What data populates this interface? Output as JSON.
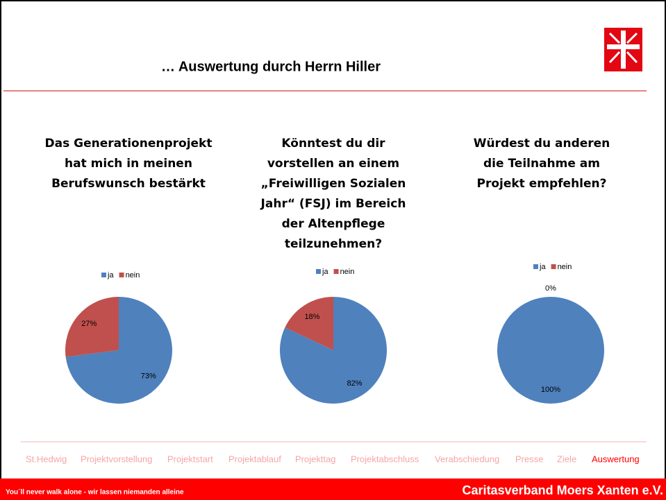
{
  "header": {
    "title": "… Auswertung durch Herrn Hiller"
  },
  "chart_data": [
    {
      "type": "pie",
      "title": [
        "Das Generationenprojekt",
        "hat mich in meinen",
        "Berufswunsch bestärkt"
      ],
      "categories": [
        "ja",
        "nein"
      ],
      "values": [
        73,
        27
      ],
      "value_labels": [
        "73%",
        "27%"
      ],
      "colors": [
        "#4f81bd",
        "#c0504d"
      ],
      "legend": "top"
    },
    {
      "type": "pie",
      "title": [
        "Könntest du dir",
        "vorstellen an einem",
        "„Freiwilligen Sozialen",
        "Jahr“ (FSJ) im Bereich",
        "der Altenpflege",
        "teilzunehmen?"
      ],
      "categories": [
        "ja",
        "nein"
      ],
      "values": [
        82,
        18
      ],
      "value_labels": [
        "82%",
        "18%"
      ],
      "colors": [
        "#4f81bd",
        "#c0504d"
      ],
      "legend": "top"
    },
    {
      "type": "pie",
      "title": [
        "Würdest du anderen",
        "die Teilnahme am",
        "Projekt empfehlen?"
      ],
      "categories": [
        "ja",
        "nein"
      ],
      "values": [
        100,
        0
      ],
      "value_labels": [
        "100%",
        "0%"
      ],
      "colors": [
        "#4f81bd",
        "#c0504d"
      ],
      "legend": "top"
    }
  ],
  "nav": {
    "items": [
      {
        "label": "St.Hedwig",
        "color": "#f4a6a6"
      },
      {
        "label": "Projektvorstellung",
        "color": "#f4a6a6"
      },
      {
        "label": "Projektstart",
        "color": "#f4a6a6"
      },
      {
        "label": "Projektablauf",
        "color": "#f4a6a6"
      },
      {
        "label": "Projekttag",
        "color": "#f4a6a6"
      },
      {
        "label": "Projektabschluss",
        "color": "#f4a6a6"
      },
      {
        "label": "Verabschiedung",
        "color": "#f4a6a6"
      },
      {
        "label": "Presse",
        "color": "#f4a6a6"
      },
      {
        "label": "Ziele",
        "color": "#f4a6a6"
      },
      {
        "label": "Auswertung",
        "color": "#ff0000"
      }
    ]
  },
  "footer": {
    "slogan": "You´ll never walk alone - wir lassen niemanden alleine",
    "org": "Caritasverband Moers Xanten e.V."
  }
}
